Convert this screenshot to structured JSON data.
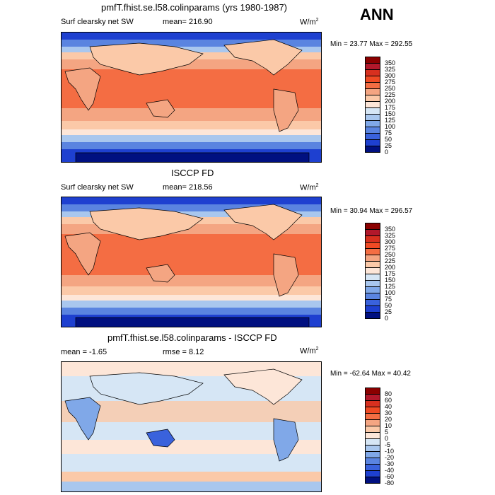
{
  "header": {
    "season": "ANN"
  },
  "panels": [
    {
      "title": "pmfT.fhist.se.l58.colinparams (yrs 1980-1987)",
      "variable": "Surf clearsky net SW",
      "stat_text": "mean= 216.90",
      "units": "W/m",
      "units_sup": "2",
      "minmax": "Min =  23.77 Max = 292.55",
      "colorbar": {
        "labels": [
          "350",
          "325",
          "300",
          "275",
          "250",
          "225",
          "200",
          "175",
          "150",
          "125",
          "100",
          "75",
          "50",
          "25",
          "0"
        ],
        "colors": [
          "#8b0000",
          "#b2182b",
          "#d7301f",
          "#ef4a24",
          "#f46d43",
          "#f4a582",
          "#fbc9a8",
          "#fde6d8",
          "#d6e6f5",
          "#a9c7ee",
          "#80a8e8",
          "#5a84e0",
          "#3a62dc",
          "#1e40d0",
          "#001080"
        ]
      }
    },
    {
      "title": "ISCCP FD",
      "variable": "Surf clearsky net SW",
      "stat_text": "mean= 218.56",
      "units": "W/m",
      "units_sup": "2",
      "minmax": "Min =  30.94 Max = 296.57",
      "colorbar": {
        "labels": [
          "350",
          "325",
          "300",
          "275",
          "250",
          "225",
          "200",
          "175",
          "150",
          "125",
          "100",
          "75",
          "50",
          "25",
          "0"
        ],
        "colors": [
          "#8b0000",
          "#b2182b",
          "#d7301f",
          "#ef4a24",
          "#f46d43",
          "#f4a582",
          "#fbc9a8",
          "#fde6d8",
          "#d6e6f5",
          "#a9c7ee",
          "#80a8e8",
          "#5a84e0",
          "#3a62dc",
          "#1e40d0",
          "#001080"
        ]
      }
    },
    {
      "title": "pmfT.fhist.se.l58.colinparams - ISCCP FD",
      "variable": "mean =  -1.65",
      "stat_text": "rmse =   8.12",
      "units": "W/m",
      "units_sup": "2",
      "minmax": "Min = -62.64 Max =  40.42",
      "colorbar": {
        "labels": [
          "80",
          "60",
          "40",
          "30",
          "20",
          "10",
          "5",
          "0",
          "-5",
          "-10",
          "-20",
          "-30",
          "-40",
          "-60",
          "-80"
        ],
        "colors": [
          "#8b0000",
          "#b2182b",
          "#d7301f",
          "#ef4a24",
          "#f46d43",
          "#f4a582",
          "#fbc9a8",
          "#fde6d8",
          "#d6e6f5",
          "#a9c7ee",
          "#80a8e8",
          "#5a84e0",
          "#3a62dc",
          "#1e40d0",
          "#001080"
        ]
      }
    }
  ]
}
